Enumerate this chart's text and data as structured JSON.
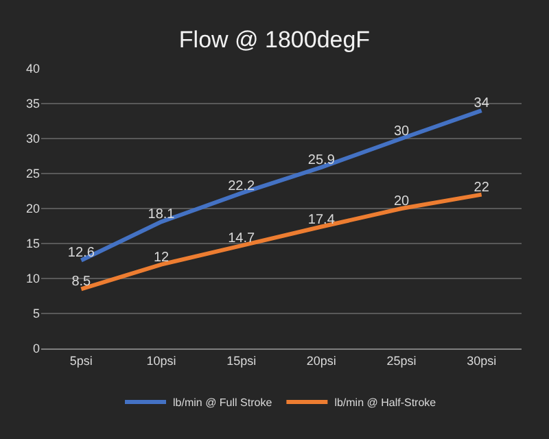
{
  "chart_data": {
    "type": "line",
    "title": "Flow @ 1800degF",
    "categories": [
      "5psi",
      "10psi",
      "15psi",
      "20psi",
      "25psi",
      "30psi"
    ],
    "series": [
      {
        "name": "lb/min @ Full Stroke",
        "color": "#4472c4",
        "values": [
          12.6,
          18.1,
          22.2,
          25.9,
          30,
          34
        ]
      },
      {
        "name": "lb/min @ Half-Stroke",
        "color": "#ed7d31",
        "values": [
          8.5,
          12,
          14.7,
          17.4,
          20,
          22
        ]
      }
    ],
    "ylim": [
      0,
      40
    ],
    "yticks": [
      0,
      5,
      10,
      15,
      20,
      25,
      30,
      35,
      40
    ],
    "grid": "y",
    "legend": "bottom",
    "marker": "none",
    "line_style": "solid",
    "data_labels": true
  }
}
